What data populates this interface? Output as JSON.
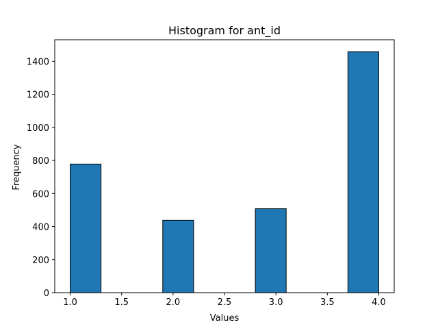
{
  "chart_data": {
    "type": "bar",
    "title": "Histogram for ant_id",
    "xlabel": "Values",
    "ylabel": "Frequency",
    "xlim": [
      0.85,
      4.15
    ],
    "ylim": [
      0,
      1530
    ],
    "x_ticks": [
      1.0,
      1.5,
      2.0,
      2.5,
      3.0,
      3.5,
      4.0
    ],
    "x_tick_labels": [
      "1.0",
      "1.5",
      "2.0",
      "2.5",
      "3.0",
      "3.5",
      "4.0"
    ],
    "y_ticks": [
      0,
      200,
      400,
      600,
      800,
      1000,
      1200,
      1400
    ],
    "y_tick_labels": [
      "0",
      "200",
      "400",
      "600",
      "800",
      "1000",
      "1200",
      "1400"
    ],
    "bin_edges": [
      1.0,
      1.3,
      1.6,
      1.9,
      2.2,
      2.5,
      2.8,
      3.1,
      3.4,
      3.7,
      4.0
    ],
    "values": [
      778,
      0,
      0,
      438,
      0,
      0,
      508,
      0,
      0,
      1457
    ],
    "bar_color": "#1f77b4",
    "edge_color": "#000000",
    "grid": false,
    "legend": "none"
  }
}
